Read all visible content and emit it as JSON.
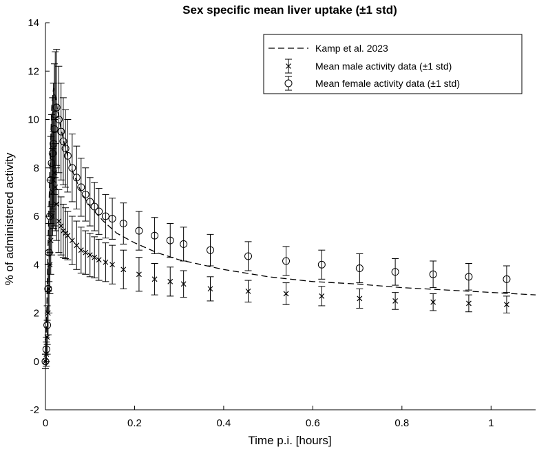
{
  "chart_data": {
    "type": "scatter",
    "title": "Sex specific mean liver uptake (±1 std)",
    "xlabel": "Time p.i. [hours]",
    "ylabel": "% of administered activity",
    "xlim": [
      0,
      1.1
    ],
    "ylim": [
      -2,
      14
    ],
    "xticks": [
      0,
      0.2,
      0.4,
      0.6,
      0.8,
      1
    ],
    "xtick_labels": [
      "0",
      "0.2",
      "0.4",
      "0.6",
      "0.8",
      "1"
    ],
    "yticks": [
      -2,
      0,
      2,
      4,
      6,
      8,
      10,
      12,
      14
    ],
    "ytick_labels": [
      "-2",
      "0",
      "2",
      "4",
      "6",
      "8",
      "10",
      "12",
      "14"
    ],
    "grid": false,
    "legend_position": "top-right",
    "legend": [
      "Kamp et al. 2023",
      "Mean male activity data (±1 std)",
      "Mean female activity data (±1 std)"
    ],
    "series": [
      {
        "name": "Kamp et al. 2023",
        "style": "dashed-line",
        "x": [
          0,
          0.003,
          0.006,
          0.01,
          0.014,
          0.018,
          0.022,
          0.028,
          0.035,
          0.045,
          0.06,
          0.08,
          0.1,
          0.13,
          0.16,
          0.2,
          0.25,
          0.3,
          0.35,
          0.4,
          0.5,
          0.6,
          0.7,
          0.8,
          0.9,
          1.0,
          1.1
        ],
        "y": [
          0,
          2,
          5,
          8,
          10.5,
          11.3,
          11,
          10.3,
          9.6,
          8.8,
          7.9,
          7.0,
          6.4,
          5.8,
          5.3,
          4.9,
          4.5,
          4.2,
          4.0,
          3.8,
          3.5,
          3.3,
          3.2,
          3.05,
          2.95,
          2.85,
          2.75
        ]
      },
      {
        "name": "Mean male activity data (±1 std)",
        "marker": "x",
        "x": [
          0,
          0.002,
          0.004,
          0.006,
          0.008,
          0.01,
          0.012,
          0.014,
          0.016,
          0.018,
          0.02,
          0.022,
          0.025,
          0.03,
          0.035,
          0.04,
          0.045,
          0.05,
          0.06,
          0.07,
          0.08,
          0.09,
          0.1,
          0.11,
          0.12,
          0.135,
          0.15,
          0.175,
          0.21,
          0.245,
          0.28,
          0.31,
          0.37,
          0.455,
          0.54,
          0.62,
          0.705,
          0.785,
          0.87,
          0.95,
          1.035
        ],
        "y": [
          0,
          0.3,
          1,
          2,
          3,
          4,
          5,
          6,
          7,
          7.5,
          7.8,
          7.2,
          6.5,
          5.8,
          5.6,
          5.4,
          5.3,
          5.2,
          5.0,
          4.8,
          4.6,
          4.5,
          4.4,
          4.3,
          4.2,
          4.1,
          4.0,
          3.8,
          3.6,
          3.4,
          3.3,
          3.2,
          3.0,
          2.9,
          2.8,
          2.7,
          2.6,
          2.5,
          2.45,
          2.4,
          2.35
        ],
        "err": [
          0.3,
          0.5,
          0.7,
          0.9,
          1.0,
          1.2,
          1.4,
          1.6,
          1.8,
          2.0,
          2.2,
          1.8,
          1.5,
          1.3,
          1.2,
          1.1,
          1.05,
          1.0,
          1.0,
          1.0,
          0.95,
          0.9,
          0.9,
          0.85,
          0.85,
          0.8,
          0.8,
          0.8,
          0.7,
          0.65,
          0.6,
          0.55,
          0.5,
          0.45,
          0.45,
          0.4,
          0.4,
          0.35,
          0.35,
          0.35,
          0.35
        ]
      },
      {
        "name": "Mean female activity data (±1 std)",
        "marker": "o",
        "x": [
          0,
          0.002,
          0.004,
          0.006,
          0.008,
          0.01,
          0.012,
          0.014,
          0.016,
          0.018,
          0.02,
          0.022,
          0.025,
          0.03,
          0.035,
          0.04,
          0.045,
          0.05,
          0.06,
          0.07,
          0.08,
          0.09,
          0.1,
          0.11,
          0.12,
          0.135,
          0.15,
          0.175,
          0.21,
          0.245,
          0.28,
          0.31,
          0.37,
          0.455,
          0.54,
          0.62,
          0.705,
          0.785,
          0.87,
          0.95,
          1.035
        ],
        "y": [
          0,
          0.5,
          1.5,
          3,
          4.5,
          6,
          7.5,
          8.2,
          8.6,
          9.0,
          9.6,
          10.2,
          10.5,
          10.0,
          9.5,
          9.1,
          8.8,
          8.5,
          8.0,
          7.6,
          7.2,
          6.9,
          6.6,
          6.4,
          6.2,
          6.0,
          5.9,
          5.7,
          5.4,
          5.2,
          5.0,
          4.85,
          4.6,
          4.35,
          4.15,
          4.0,
          3.85,
          3.7,
          3.6,
          3.5,
          3.4
        ],
        "err": [
          0.3,
          0.5,
          0.8,
          1.0,
          1.2,
          1.5,
          1.8,
          2.0,
          2.3,
          2.5,
          2.7,
          2.6,
          2.4,
          2.2,
          2.0,
          1.8,
          1.6,
          1.5,
          1.4,
          1.3,
          1.2,
          1.1,
          1.0,
          1.0,
          0.95,
          0.9,
          0.85,
          0.85,
          0.8,
          0.75,
          0.7,
          0.7,
          0.65,
          0.6,
          0.6,
          0.6,
          0.6,
          0.55,
          0.55,
          0.55,
          0.55
        ]
      }
    ]
  }
}
